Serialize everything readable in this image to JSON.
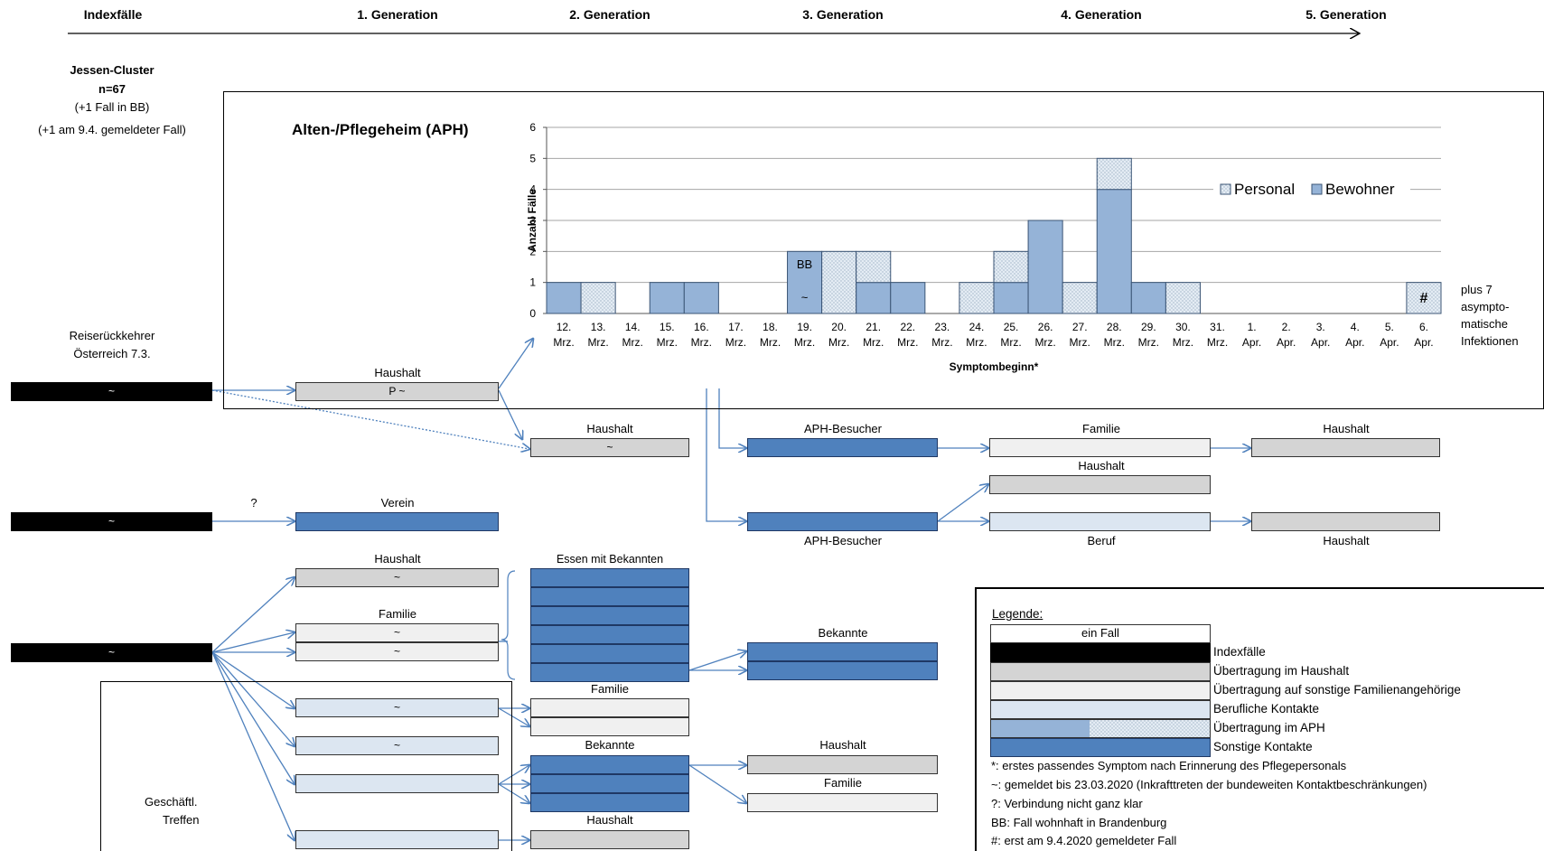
{
  "headers": {
    "indexfaelle": "Indexfälle",
    "gen1": "1. Generation",
    "gen2": "2. Generation",
    "gen3": "3. Generation",
    "gen4": "4. Generation",
    "gen5": "5. Generation"
  },
  "cluster": {
    "title": "Jessen-Cluster",
    "n": "n=67",
    "bb": "(+1 Fall in BB)",
    "late": "(+1 am 9.4. gemeldeter Fall)"
  },
  "aph_title": "Alten-/Pflegeheim (APH)",
  "reise": {
    "line1": "Reiserückkehrer",
    "line2": "Österreich 7.3."
  },
  "geschaeftl": {
    "line1": "Geschäftl.",
    "line2": "Treffen"
  },
  "labels": {
    "haushalt": "Haushalt",
    "familie": "Familie",
    "verein": "Verein",
    "aph_besucher": "APH-Besucher",
    "beruf": "Beruf",
    "bekannte": "Bekannte",
    "essen": "Essen mit Bekannten",
    "question": "?"
  },
  "marks": {
    "tilde": "~",
    "p_tilde": "P ~"
  },
  "asym": {
    "l1": "plus 7",
    "l2": "asympto-",
    "l3": "matische",
    "l4": "Infektionen"
  },
  "chart_data": {
    "type": "bar",
    "stacked": true,
    "ylabel": "Anzahl Fälle",
    "xlabel": "Symptombeginn*",
    "ylim": [
      0,
      6
    ],
    "yticks": [
      0,
      1,
      2,
      3,
      4,
      5,
      6
    ],
    "grid": true,
    "legend_position": "top-right",
    "categories": [
      "12. Mrz.",
      "13. Mrz.",
      "14. Mrz.",
      "15. Mrz.",
      "16. Mrz.",
      "17. Mrz.",
      "18. Mrz.",
      "19. Mrz.",
      "20. Mrz.",
      "21. Mrz.",
      "22. Mrz.",
      "23. Mrz.",
      "24. Mrz.",
      "25. Mrz.",
      "26. Mrz.",
      "27. Mrz.",
      "28. Mrz.",
      "29. Mrz.",
      "30. Mrz.",
      "31. Mrz.",
      "1. Apr.",
      "2. Apr.",
      "3. Apr.",
      "4. Apr.",
      "5. Apr.",
      "6. Apr."
    ],
    "series": [
      {
        "name": "Bewohner",
        "color": "#95b3d7",
        "values": [
          1,
          0,
          0,
          1,
          1,
          0,
          0,
          2,
          0,
          1,
          1,
          0,
          0,
          1,
          3,
          0,
          4,
          1,
          0,
          0,
          0,
          0,
          0,
          0,
          0,
          0
        ]
      },
      {
        "name": "Personal",
        "color": "#d9e3ee",
        "values": [
          0,
          1,
          0,
          0,
          0,
          0,
          0,
          0,
          2,
          1,
          0,
          0,
          1,
          1,
          0,
          1,
          1,
          0,
          1,
          0,
          0,
          0,
          0,
          0,
          0,
          1
        ]
      }
    ],
    "annotations": [
      {
        "category": "19. Mrz.",
        "text": "BB"
      },
      {
        "category": "19. Mrz.",
        "text": "~"
      },
      {
        "category": "6. Apr.",
        "text": "#"
      }
    ]
  },
  "legend": {
    "title": "Legende:",
    "ein_fall": "ein Fall",
    "items": [
      "Indexfälle",
      "Übertragung im Haushalt",
      "Übertragung auf sonstige Familienangehörige",
      "Berufliche Kontakte",
      "Übertragung im APH",
      "Sonstige Kontakte"
    ],
    "notes": [
      "*: erstes passendes Symptom nach Erinnerung des Pflegepersonals",
      "~: gemeldet bis 23.03.2020 (Inkrafttreten der bundeweiten Kontaktbeschränkungen)",
      "?: Verbindung nicht ganz klar",
      "BB: Fall wohnhaft in Brandenburg",
      "#: erst am 9.4.2020 gemeldeter Fall"
    ]
  }
}
